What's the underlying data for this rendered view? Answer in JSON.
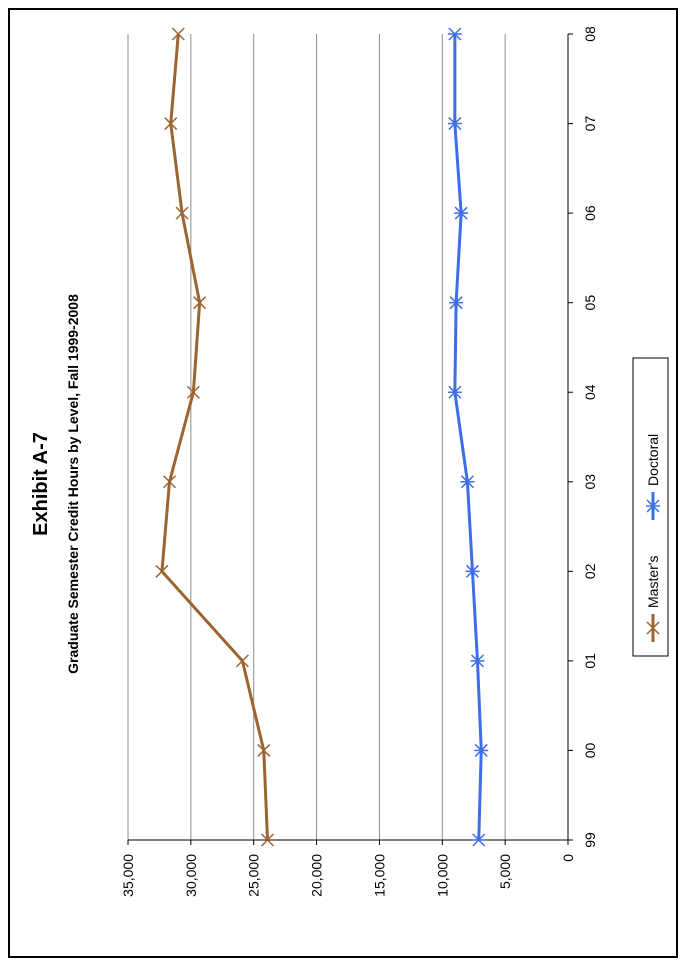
{
  "chart_data": {
    "type": "line",
    "title": "Exhibit A-7",
    "subtitle": "Graduate Semester Credit Hours by Level, Fall 1999-2008",
    "orientation": "rotated-90-ccw",
    "categories": [
      "99",
      "00",
      "01",
      "02",
      "03",
      "04",
      "05",
      "06",
      "07",
      "08"
    ],
    "ylim": [
      0,
      35000
    ],
    "yticks": [
      0,
      5000,
      10000,
      15000,
      20000,
      25000,
      30000,
      35000
    ],
    "ytick_labels": [
      "0",
      "5,000",
      "10,000",
      "15,000",
      "20,000",
      "25,000",
      "30,000",
      "35,000"
    ],
    "grid": true,
    "legend_position": "right",
    "series": [
      {
        "name": "Master's",
        "color": "#9C6430",
        "marker": "x",
        "values": [
          23900,
          24200,
          25900,
          32300,
          31700,
          29800,
          29300,
          30700,
          31600,
          31000
        ]
      },
      {
        "name": "Doctoral",
        "color": "#3D6EE8",
        "marker": "asterisk",
        "values": [
          7100,
          6900,
          7200,
          7600,
          8000,
          9000,
          8900,
          8500,
          9000,
          9000
        ]
      }
    ]
  }
}
